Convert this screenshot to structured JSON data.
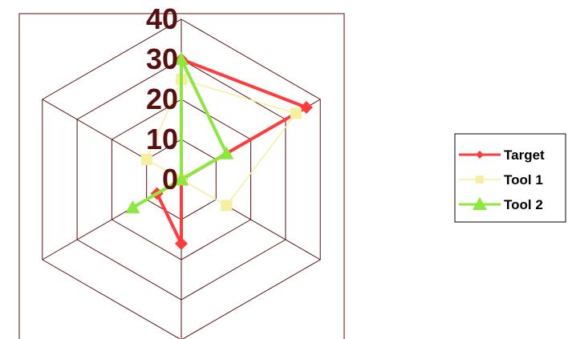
{
  "chart_data": {
    "type": "radar",
    "axes_count": 6,
    "r_range": [
      0,
      40
    ],
    "ticks": [
      "0",
      "10",
      "20",
      "30",
      "40"
    ],
    "tick_values": [
      0,
      10,
      20,
      30,
      40
    ],
    "grid": true,
    "legend_position": "right",
    "series": [
      {
        "name": "Target",
        "values": [
          30,
          36,
          0,
          16,
          7,
          0
        ],
        "color": "#ff3b3b",
        "marker": "diamond"
      },
      {
        "name": "Tool 1",
        "values": [
          25,
          33,
          13,
          0,
          0,
          10
        ],
        "color": "#f5f0a0",
        "marker": "square"
      },
      {
        "name": "Tool 2",
        "values": [
          30,
          13,
          0,
          0,
          14,
          0
        ],
        "color": "#8be83c",
        "marker": "triangle"
      }
    ],
    "colors": {
      "grid": "#5a0f0f",
      "frame": "#5a0f0f",
      "ticks": "#5a0f0f"
    }
  }
}
